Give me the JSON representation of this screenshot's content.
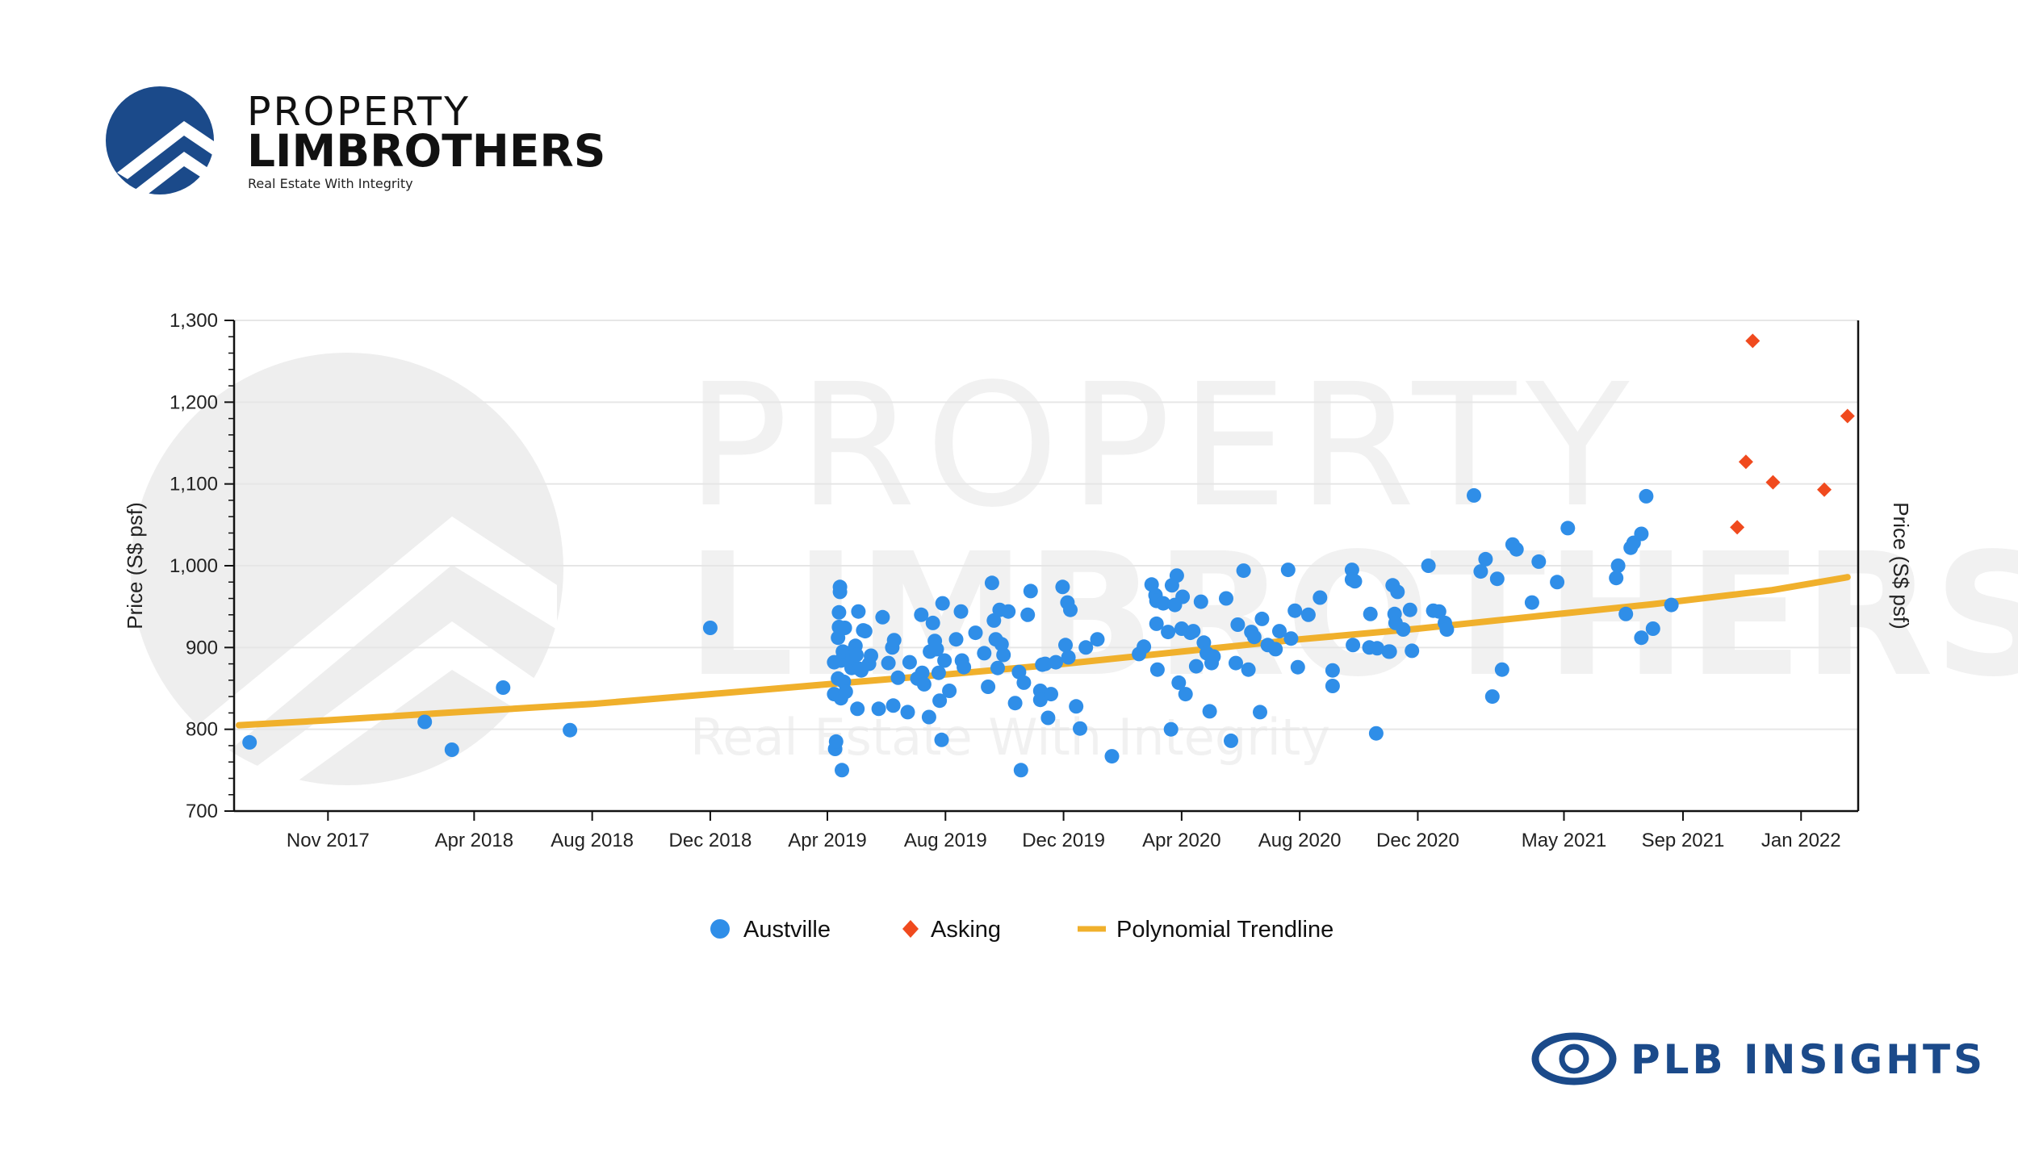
{
  "branding": {
    "logo_line1": "PROPERTY",
    "logo_line2": "LIMBROTHERS",
    "tagline": "Real Estate With Integrity",
    "footer_brand": "PLB INSIGHTS",
    "brand_color": "#1b4a8a",
    "watermark_line1": "PROPERTY",
    "watermark_line2": "LIMBROTHERS",
    "watermark_line3": "Real Estate With Integrity"
  },
  "chart_data": {
    "type": "scatter",
    "title": "",
    "ylabel": "Price (S$ psf)",
    "ylabel_right": "Price (S$ psf)",
    "xlabel": "",
    "ylim": [
      700,
      1300
    ],
    "xlim": [
      "2017-07-27",
      "2022-03-01"
    ],
    "yticks": [
      700,
      800,
      900,
      1000,
      1100,
      1200,
      1300
    ],
    "ytick_labels": [
      "700",
      "800",
      "900",
      "1,000",
      "1,100",
      "1,200",
      "1,300"
    ],
    "xticks": [
      "2017-11-01",
      "2018-04-01",
      "2018-08-01",
      "2018-12-01",
      "2019-04-01",
      "2019-08-01",
      "2019-12-01",
      "2020-04-01",
      "2020-08-01",
      "2020-12-01",
      "2021-05-01",
      "2021-09-01",
      "2022-01-01"
    ],
    "xtick_labels": [
      "Nov 2017",
      "Apr 2018",
      "Aug 2018",
      "Dec 2018",
      "Apr 2019",
      "Aug 2019",
      "Dec 2019",
      "Apr 2020",
      "Aug 2020",
      "Dec 2020",
      "May 2021",
      "Sep 2021",
      "Jan 2022"
    ],
    "grid": "horizontal",
    "legend_position": "bottom",
    "colors": {
      "austville": "#2f8ee8",
      "asking": "#f04a1e",
      "trend": "#f0b02c"
    },
    "series": [
      {
        "name": "Austville",
        "marker": "circle",
        "points": [
          [
            "2017-08-12",
            784
          ],
          [
            "2018-02-09",
            809
          ],
          [
            "2018-03-09",
            775
          ],
          [
            "2018-05-01",
            851
          ],
          [
            "2018-07-09",
            799
          ],
          [
            "2018-12-01",
            924
          ],
          [
            "2019-04-08",
            843
          ],
          [
            "2019-04-08",
            882
          ],
          [
            "2019-04-09",
            776
          ],
          [
            "2019-04-10",
            785
          ],
          [
            "2019-04-12",
            862
          ],
          [
            "2019-04-12",
            912
          ],
          [
            "2019-04-13",
            943
          ],
          [
            "2019-04-13",
            925
          ],
          [
            "2019-04-14",
            974
          ],
          [
            "2019-04-14",
            968
          ],
          [
            "2019-04-15",
            838
          ],
          [
            "2019-04-15",
            884
          ],
          [
            "2019-04-16",
            750
          ],
          [
            "2019-04-17",
            895
          ],
          [
            "2019-04-18",
            858
          ],
          [
            "2019-04-19",
            924
          ],
          [
            "2019-04-20",
            846
          ],
          [
            "2019-04-23",
            893
          ],
          [
            "2019-04-26",
            875
          ],
          [
            "2019-04-27",
            888
          ],
          [
            "2019-04-30",
            902
          ],
          [
            "2019-05-01",
            891
          ],
          [
            "2019-05-02",
            825
          ],
          [
            "2019-05-03",
            944
          ],
          [
            "2019-05-04",
            874
          ],
          [
            "2019-05-06",
            872
          ],
          [
            "2019-05-08",
            921
          ],
          [
            "2019-05-10",
            920
          ],
          [
            "2019-05-14",
            880
          ],
          [
            "2019-05-16",
            890
          ],
          [
            "2019-05-24",
            825
          ],
          [
            "2019-05-28",
            937
          ],
          [
            "2019-06-03",
            881
          ],
          [
            "2019-06-07",
            900
          ],
          [
            "2019-06-08",
            829
          ],
          [
            "2019-06-09",
            909
          ],
          [
            "2019-06-13",
            863
          ],
          [
            "2019-06-23",
            821
          ],
          [
            "2019-06-25",
            882
          ],
          [
            "2019-07-03",
            862
          ],
          [
            "2019-07-07",
            940
          ],
          [
            "2019-07-08",
            869
          ],
          [
            "2019-07-10",
            855
          ],
          [
            "2019-07-15",
            815
          ],
          [
            "2019-07-16",
            895
          ],
          [
            "2019-07-19",
            930
          ],
          [
            "2019-07-21",
            908
          ],
          [
            "2019-07-23",
            898
          ],
          [
            "2019-07-25",
            869
          ],
          [
            "2019-07-26",
            835
          ],
          [
            "2019-07-28",
            787
          ],
          [
            "2019-07-29",
            954
          ],
          [
            "2019-07-31",
            884
          ],
          [
            "2019-08-05",
            847
          ],
          [
            "2019-08-12",
            910
          ],
          [
            "2019-08-17",
            944
          ],
          [
            "2019-08-18",
            884
          ],
          [
            "2019-08-20",
            876
          ],
          [
            "2019-09-01",
            918
          ],
          [
            "2019-09-10",
            893
          ],
          [
            "2019-09-14",
            852
          ],
          [
            "2019-09-18",
            979
          ],
          [
            "2019-09-20",
            933
          ],
          [
            "2019-09-22",
            910
          ],
          [
            "2019-09-24",
            875
          ],
          [
            "2019-09-26",
            946
          ],
          [
            "2019-09-28",
            904
          ],
          [
            "2019-09-30",
            891
          ],
          [
            "2019-10-05",
            944
          ],
          [
            "2019-10-12",
            832
          ],
          [
            "2019-10-16",
            870
          ],
          [
            "2019-10-18",
            750
          ],
          [
            "2019-10-21",
            857
          ],
          [
            "2019-10-25",
            940
          ],
          [
            "2019-10-28",
            969
          ],
          [
            "2019-11-07",
            847
          ],
          [
            "2019-11-07",
            836
          ],
          [
            "2019-11-09",
            879
          ],
          [
            "2019-11-12",
            880
          ],
          [
            "2019-11-15",
            814
          ],
          [
            "2019-11-18",
            843
          ],
          [
            "2019-11-23",
            882
          ],
          [
            "2019-11-30",
            974
          ],
          [
            "2019-12-03",
            903
          ],
          [
            "2019-12-05",
            955
          ],
          [
            "2019-12-06",
            888
          ],
          [
            "2019-12-08",
            946
          ],
          [
            "2019-12-14",
            828
          ],
          [
            "2019-12-18",
            801
          ],
          [
            "2019-12-24",
            900
          ],
          [
            "2020-01-05",
            910
          ],
          [
            "2020-01-20",
            767
          ],
          [
            "2020-02-17",
            892
          ],
          [
            "2020-02-22",
            901
          ],
          [
            "2020-03-01",
            977
          ],
          [
            "2020-03-05",
            964
          ],
          [
            "2020-03-06",
            957
          ],
          [
            "2020-03-06",
            929
          ],
          [
            "2020-03-07",
            873
          ],
          [
            "2020-03-13",
            954
          ],
          [
            "2020-03-18",
            919
          ],
          [
            "2020-03-21",
            800
          ],
          [
            "2020-03-22",
            976
          ],
          [
            "2020-03-25",
            952
          ],
          [
            "2020-03-27",
            988
          ],
          [
            "2020-03-29",
            857
          ],
          [
            "2020-04-01",
            923
          ],
          [
            "2020-04-02",
            962
          ],
          [
            "2020-04-05",
            843
          ],
          [
            "2020-04-10",
            918
          ],
          [
            "2020-04-13",
            920
          ],
          [
            "2020-04-16",
            877
          ],
          [
            "2020-04-21",
            956
          ],
          [
            "2020-04-24",
            906
          ],
          [
            "2020-04-27",
            893
          ],
          [
            "2020-04-30",
            822
          ],
          [
            "2020-05-02",
            881
          ],
          [
            "2020-05-04",
            889
          ],
          [
            "2020-05-17",
            960
          ],
          [
            "2020-05-22",
            786
          ],
          [
            "2020-05-27",
            881
          ],
          [
            "2020-05-29",
            928
          ],
          [
            "2020-06-04",
            994
          ],
          [
            "2020-06-09",
            873
          ],
          [
            "2020-06-12",
            919
          ],
          [
            "2020-06-15",
            913
          ],
          [
            "2020-06-21",
            821
          ],
          [
            "2020-06-23",
            935
          ],
          [
            "2020-06-29",
            903
          ],
          [
            "2020-07-07",
            898
          ],
          [
            "2020-07-11",
            920
          ],
          [
            "2020-07-20",
            995
          ],
          [
            "2020-07-23",
            911
          ],
          [
            "2020-07-27",
            945
          ],
          [
            "2020-07-30",
            876
          ],
          [
            "2020-08-10",
            940
          ],
          [
            "2020-08-22",
            961
          ],
          [
            "2020-09-04",
            853
          ],
          [
            "2020-09-04",
            872
          ],
          [
            "2020-09-24",
            995
          ],
          [
            "2020-09-24",
            983
          ],
          [
            "2020-09-25",
            903
          ],
          [
            "2020-09-27",
            981
          ],
          [
            "2020-10-12",
            900
          ],
          [
            "2020-10-13",
            941
          ],
          [
            "2020-10-19",
            795
          ],
          [
            "2020-10-20",
            899
          ],
          [
            "2020-11-01",
            895
          ],
          [
            "2020-11-02",
            895
          ],
          [
            "2020-11-05",
            976
          ],
          [
            "2020-11-07",
            941
          ],
          [
            "2020-11-08",
            930
          ],
          [
            "2020-11-10",
            968
          ],
          [
            "2020-11-16",
            922
          ],
          [
            "2020-11-23",
            946
          ],
          [
            "2020-11-25",
            896
          ],
          [
            "2020-12-12",
            1000
          ],
          [
            "2020-12-17",
            945
          ],
          [
            "2020-12-23",
            944
          ],
          [
            "2020-12-29",
            930
          ],
          [
            "2020-12-31",
            922
          ],
          [
            "2021-01-28",
            1086
          ],
          [
            "2021-02-04",
            993
          ],
          [
            "2021-02-09",
            1008
          ],
          [
            "2021-02-16",
            840
          ],
          [
            "2021-02-21",
            984
          ],
          [
            "2021-02-26",
            873
          ],
          [
            "2021-03-09",
            1026
          ],
          [
            "2021-03-13",
            1020
          ],
          [
            "2021-03-29",
            955
          ],
          [
            "2021-04-05",
            1005
          ],
          [
            "2021-04-24",
            980
          ],
          [
            "2021-05-05",
            1046
          ],
          [
            "2021-06-24",
            985
          ],
          [
            "2021-06-26",
            1000
          ],
          [
            "2021-07-04",
            941
          ],
          [
            "2021-07-09",
            1022
          ],
          [
            "2021-07-12",
            1028
          ],
          [
            "2021-07-20",
            1039
          ],
          [
            "2021-07-20",
            912
          ],
          [
            "2021-07-25",
            1085
          ],
          [
            "2021-08-01",
            923
          ],
          [
            "2021-08-20",
            952
          ]
        ]
      },
      {
        "name": "Asking",
        "marker": "diamond",
        "points": [
          [
            "2021-10-27",
            1047
          ],
          [
            "2021-11-05",
            1127
          ],
          [
            "2021-11-12",
            1275
          ],
          [
            "2021-12-03",
            1102
          ],
          [
            "2022-01-25",
            1093
          ],
          [
            "2022-02-18",
            1183
          ]
        ]
      },
      {
        "name": "Polynomial Trendline",
        "marker": "line",
        "points": [
          [
            "2017-08-01",
            805
          ],
          [
            "2017-11-01",
            811
          ],
          [
            "2018-03-01",
            820
          ],
          [
            "2018-08-01",
            831
          ],
          [
            "2018-12-01",
            843
          ],
          [
            "2019-04-01",
            855
          ],
          [
            "2019-08-01",
            867
          ],
          [
            "2019-12-01",
            880
          ],
          [
            "2020-04-01",
            895
          ],
          [
            "2020-08-01",
            910
          ],
          [
            "2020-12-01",
            923
          ],
          [
            "2021-04-01",
            938
          ],
          [
            "2021-08-01",
            953
          ],
          [
            "2021-12-01",
            970
          ],
          [
            "2022-02-18",
            986
          ]
        ]
      }
    ]
  }
}
